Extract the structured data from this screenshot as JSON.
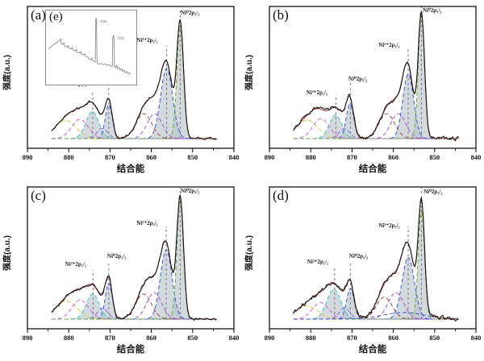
{
  "chart_data": {
    "type": "line",
    "title": "",
    "xlabel": "结合能",
    "ylabel": "强度(a.u.)",
    "x_ticks": [
      890,
      880,
      870,
      860,
      850,
      840
    ],
    "x_range": [
      890,
      840
    ],
    "x_axis_reversed": true,
    "grid": false,
    "legend": "none",
    "colors": {
      "data_line": "#151515",
      "envelope": "#a83232",
      "fill": "#b7c3c8",
      "guide": "#787878",
      "frame": "#000000"
    },
    "panels": [
      {
        "tag": "(a)",
        "seed": 11,
        "noise": 1.0,
        "peak_frac": 0.92,
        "components": [
          {
            "name": "Ni2+ 2p1/2 satellite B",
            "c": 880.8,
            "s": 2.6,
            "a": 0.16,
            "color": "#d9cf2e",
            "fill": false
          },
          {
            "name": "Ni2+ 2p1/2 satellite A",
            "c": 877.3,
            "s": 2.0,
            "a": 0.17,
            "color": "#e55ae5",
            "fill": false
          },
          {
            "name": "Ni2+ 2p1/2",
            "c": 874.3,
            "s": 1.55,
            "a": 0.24,
            "color": "#35cbcb",
            "fill": true
          },
          {
            "name": "Ni2+ 2p1/2 shoulder",
            "c": 871.9,
            "s": 1.3,
            "a": 0.09,
            "color": "#8f62e8",
            "fill": false
          },
          {
            "name": "Ni0 2p1/2",
            "c": 870.3,
            "s": 0.85,
            "a": 0.3,
            "color": "#3a57e0",
            "fill": true
          },
          {
            "name": "Ni2+ 2p3/2 satellite B",
            "c": 861.8,
            "s": 1.9,
            "a": 0.22,
            "color": "#a84848",
            "fill": false
          },
          {
            "name": "Ni2+ 2p3/2 satellite A",
            "c": 859.2,
            "s": 1.8,
            "a": 0.22,
            "color": "#ab4fd6",
            "fill": false
          },
          {
            "name": "Ni2+ 2p3/2",
            "c": 856.3,
            "s": 1.45,
            "a": 0.62,
            "color": "#3a57e0",
            "fill": true
          },
          {
            "name": "Ni0 2p3/2",
            "c": 853.0,
            "s": 0.8,
            "a": 1.0,
            "color": "#6aaa3c",
            "fill": true
          }
        ],
        "guides": [
          {
            "x": 874.2,
            "t": 0.37
          },
          {
            "x": 870.3,
            "t": 0.44
          },
          {
            "x": 856.3,
            "t": 0.72
          },
          {
            "x": 853.0,
            "t": 1.0
          }
        ],
        "annotations": [
          {
            "text": "Ni²⁺2p₁/₂",
            "x": 878.3,
            "t": 0.4
          },
          {
            "text": "Ni⁰2p₁/₂",
            "x": 868.4,
            "t": 0.46
          },
          {
            "text": "Ni²⁺2p₃/₂",
            "x": 861.0,
            "t": 0.74
          },
          {
            "text": "Ni⁰2p₃/₂",
            "x": 850.6,
            "t": 0.95
          }
        ]
      },
      {
        "tag": "(b)",
        "seed": 22,
        "noise": 1.55,
        "peak_frac": 0.99,
        "components": [
          {
            "name": "Ni2+ 2p1/2 satellite B",
            "c": 880.9,
            "s": 2.6,
            "a": 0.15,
            "color": "#d9cf2e",
            "fill": false
          },
          {
            "name": "Ni2+ 2p1/2 satellite A",
            "c": 877.5,
            "s": 2.0,
            "a": 0.16,
            "color": "#e55ae5",
            "fill": false
          },
          {
            "name": "Ni2+ 2p1/2",
            "c": 874.0,
            "s": 1.5,
            "a": 0.19,
            "color": "#35cbcb",
            "fill": true
          },
          {
            "name": "Ni2+ 2p1/2 shoulder",
            "c": 871.9,
            "s": 1.3,
            "a": 0.08,
            "color": "#8f62e8",
            "fill": false
          },
          {
            "name": "Ni0 2p1/2",
            "c": 870.5,
            "s": 0.9,
            "a": 0.28,
            "color": "#3a57e0",
            "fill": true
          },
          {
            "name": "Ni2+ 2p3/2 satellite B",
            "c": 861.6,
            "s": 1.9,
            "a": 0.2,
            "color": "#a84848",
            "fill": false
          },
          {
            "name": "Ni2+ 2p3/2 satellite A",
            "c": 858.8,
            "s": 1.8,
            "a": 0.2,
            "color": "#ab4fd6",
            "fill": false
          },
          {
            "name": "Ni2+ 2p3/2",
            "c": 856.4,
            "s": 1.3,
            "a": 0.52,
            "color": "#3a57e0",
            "fill": true
          },
          {
            "name": "Ni0 2p3/2",
            "c": 853.2,
            "s": 0.75,
            "a": 1.0,
            "color": "#6aaa3c",
            "fill": true
          }
        ],
        "guides": [
          {
            "x": 873.9,
            "t": 0.34
          },
          {
            "x": 870.4,
            "t": 0.43
          },
          {
            "x": 856.4,
            "t": 0.7
          },
          {
            "x": 853.2,
            "t": 1.05
          }
        ],
        "annotations": [
          {
            "text": "Ni²⁺2p₁/₂",
            "x": 878.5,
            "t": 0.33
          },
          {
            "text": "Ni⁰2p₁/₂",
            "x": 868.6,
            "t": 0.44
          },
          {
            "text": "Ni²⁺2p₃/₂",
            "x": 861.0,
            "t": 0.7
          },
          {
            "text": "Ni⁰2p₃/₂",
            "x": 850.6,
            "t": 0.97
          }
        ]
      },
      {
        "tag": "(c)",
        "seed": 33,
        "noise": 1.2,
        "peak_frac": 0.96,
        "components": [
          {
            "name": "Ni2+ 2p1/2 satellite B",
            "c": 880.6,
            "s": 2.6,
            "a": 0.15,
            "color": "#d9cf2e",
            "fill": false
          },
          {
            "name": "Ni2+ 2p1/2 satellite A",
            "c": 877.2,
            "s": 2.0,
            "a": 0.16,
            "color": "#e55ae5",
            "fill": false
          },
          {
            "name": "Ni2+ 2p1/2",
            "c": 874.2,
            "s": 1.55,
            "a": 0.21,
            "color": "#35cbcb",
            "fill": true
          },
          {
            "name": "Ni2+ 2p1/2 shoulder",
            "c": 871.8,
            "s": 1.3,
            "a": 0.09,
            "color": "#8f62e8",
            "fill": false
          },
          {
            "name": "Ni0 2p1/2",
            "c": 870.3,
            "s": 0.85,
            "a": 0.3,
            "color": "#3a57e0",
            "fill": true
          },
          {
            "name": "Ni2+ 2p3/2 satellite B",
            "c": 861.9,
            "s": 1.9,
            "a": 0.21,
            "color": "#a84848",
            "fill": false
          },
          {
            "name": "Ni2+ 2p3/2 satellite A",
            "c": 859.3,
            "s": 1.8,
            "a": 0.22,
            "color": "#ab4fd6",
            "fill": false
          },
          {
            "name": "Ni2+ 2p3/2",
            "c": 856.4,
            "s": 1.4,
            "a": 0.58,
            "color": "#3a57e0",
            "fill": true
          },
          {
            "name": "Ni0 2p3/2",
            "c": 853.0,
            "s": 0.8,
            "a": 1.0,
            "color": "#6aaa3c",
            "fill": true
          }
        ],
        "guides": [
          {
            "x": 874.1,
            "t": 0.38
          },
          {
            "x": 870.3,
            "t": 0.44
          },
          {
            "x": 856.4,
            "t": 0.72
          },
          {
            "x": 853.0,
            "t": 1.02
          }
        ],
        "annotations": [
          {
            "text": "Ni²⁺2p₁/₂",
            "x": 878.3,
            "t": 0.4
          },
          {
            "text": "Ni⁰2p₁/₂",
            "x": 868.4,
            "t": 0.46
          },
          {
            "text": "Ni²⁺2p₃/₂",
            "x": 861.0,
            "t": 0.72
          },
          {
            "text": "Ni⁰2p₃/₂",
            "x": 850.6,
            "t": 0.97
          }
        ]
      },
      {
        "tag": "(d)",
        "seed": 44,
        "noise": 1.75,
        "peak_frac": 0.94,
        "components": [
          {
            "name": "Ni2+ 2p1/2 satellite B",
            "c": 881.0,
            "s": 2.6,
            "a": 0.12,
            "color": "#d9cf2e",
            "fill": false
          },
          {
            "name": "Ni2+ 2p1/2 satellite A",
            "c": 877.6,
            "s": 2.0,
            "a": 0.15,
            "color": "#e55ae5",
            "fill": false
          },
          {
            "name": "Ni2+ 2p1/2",
            "c": 874.4,
            "s": 1.7,
            "a": 0.27,
            "color": "#35cbcb",
            "fill": true
          },
          {
            "name": "Ni2+ 2p1/2 shoulder",
            "c": 871.8,
            "s": 1.3,
            "a": 0.1,
            "color": "#8f62e8",
            "fill": false
          },
          {
            "name": "Ni0 2p1/2",
            "c": 870.4,
            "s": 0.9,
            "a": 0.28,
            "color": "#3a57e0",
            "fill": true
          },
          {
            "name": "Ni2+ 2p3/2 satellite B",
            "c": 862.2,
            "s": 1.9,
            "a": 0.2,
            "color": "#a84848",
            "fill": false
          },
          {
            "name": "Ni2+ 2p3/2 satellite A",
            "c": 859.4,
            "s": 1.9,
            "a": 0.24,
            "color": "#ab4fd6",
            "fill": false
          },
          {
            "name": "Ni2+ 2p3/2",
            "c": 856.4,
            "s": 1.5,
            "a": 0.56,
            "color": "#3a57e0",
            "fill": true
          },
          {
            "name": "Ni0 2p3/2",
            "c": 853.2,
            "s": 0.75,
            "a": 1.0,
            "color": "#6aaa3c",
            "fill": true
          },
          {
            "name": "broad background",
            "c": 857.5,
            "s": 5.0,
            "a": 0.06,
            "color": "#3a57e0",
            "fill": false
          }
        ],
        "guides": [
          {
            "x": 874.2,
            "t": 0.4
          },
          {
            "x": 870.4,
            "t": 0.44
          },
          {
            "x": 856.4,
            "t": 0.72
          },
          {
            "x": 853.2,
            "t": 1.02
          }
        ],
        "annotations": [
          {
            "text": "Ni²⁺2p₁/₂",
            "x": 878.3,
            "t": 0.42
          },
          {
            "text": "Ni⁰2p₁/₂",
            "x": 868.4,
            "t": 0.46
          },
          {
            "text": "Ni²⁺2p₃/₂",
            "x": 861.0,
            "t": 0.7
          },
          {
            "text": "Ni⁰2p₃/₂",
            "x": 850.4,
            "t": 0.96
          }
        ]
      }
    ],
    "inset": {
      "tag": "(e)",
      "host_panel": 0,
      "line_color": "#8a8a8a",
      "points": [
        [
          0,
          48
        ],
        [
          4,
          52
        ],
        [
          8,
          56
        ],
        [
          12,
          59
        ],
        [
          14,
          61
        ],
        [
          15,
          63
        ],
        [
          15.5,
          56
        ],
        [
          18,
          55
        ],
        [
          19,
          57
        ],
        [
          20,
          52
        ],
        [
          23,
          51
        ],
        [
          24,
          53
        ],
        [
          25,
          49
        ],
        [
          28,
          48
        ],
        [
          29,
          50
        ],
        [
          30,
          46
        ],
        [
          33,
          45
        ],
        [
          34,
          47
        ],
        [
          35,
          43
        ],
        [
          38,
          42
        ],
        [
          39,
          44
        ],
        [
          40,
          40
        ],
        [
          43,
          39
        ],
        [
          44,
          41
        ],
        [
          45,
          37
        ],
        [
          48,
          36
        ],
        [
          49,
          33
        ],
        [
          52,
          32
        ],
        [
          53,
          34
        ],
        [
          54,
          30
        ],
        [
          56,
          29
        ],
        [
          57,
          28
        ],
        [
          57.6,
          94
        ],
        [
          58.4,
          94
        ],
        [
          59,
          35
        ],
        [
          59.5,
          26
        ],
        [
          62,
          25
        ],
        [
          64,
          26
        ],
        [
          66,
          24
        ],
        [
          69,
          25
        ],
        [
          71,
          23
        ],
        [
          74,
          24
        ],
        [
          76,
          22
        ],
        [
          77.6,
          22
        ],
        [
          78.2,
          66
        ],
        [
          79.2,
          68
        ],
        [
          79.8,
          64
        ],
        [
          80.4,
          21
        ],
        [
          82,
          20
        ],
        [
          83,
          23
        ],
        [
          84,
          18
        ],
        [
          86,
          20
        ],
        [
          87,
          16
        ],
        [
          89,
          18
        ],
        [
          90,
          14
        ],
        [
          92,
          16
        ],
        [
          93,
          12
        ],
        [
          95,
          14
        ],
        [
          96,
          11
        ],
        [
          98,
          12
        ],
        [
          100,
          9
        ]
      ],
      "labels": [
        {
          "text": "O1s",
          "x": 63,
          "y": 88
        },
        {
          "text": "C1s",
          "x": 84,
          "y": 63
        }
      ]
    }
  }
}
